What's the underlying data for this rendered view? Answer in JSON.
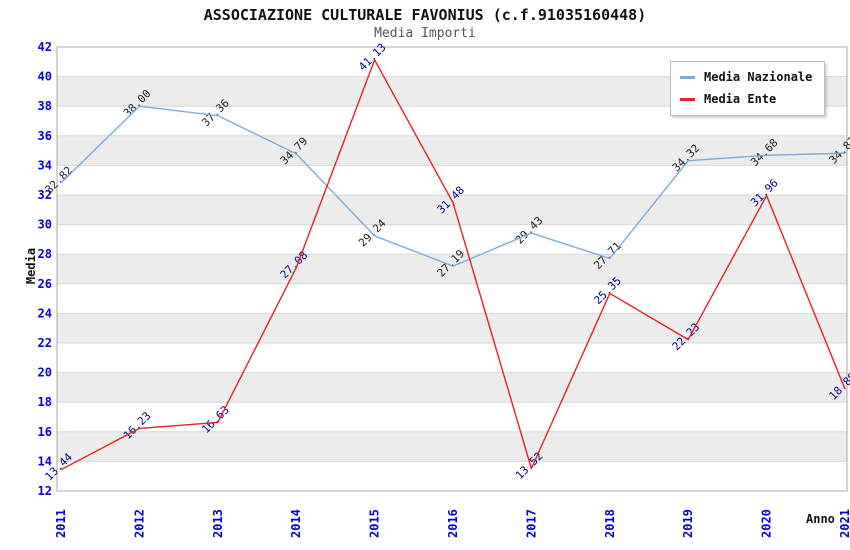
{
  "chart_data": {
    "type": "line",
    "title": "ASSOCIAZIONE CULTURALE FAVONIUS (c.f.91035160448)",
    "subtitle": "Media Importi",
    "xlabel": "Anno",
    "ylabel": "Media",
    "x": [
      "2011",
      "2012",
      "2013",
      "2014",
      "2015",
      "2016",
      "2017",
      "2018",
      "2019",
      "2020",
      "2021"
    ],
    "ylim": [
      12,
      42
    ],
    "ytick_step": 2,
    "grid": true,
    "legend_position": "top-right",
    "series": [
      {
        "name": "Media Nazionale",
        "color": "#7AACDE",
        "label_color": "#222222",
        "values": [
          32.82,
          38.0,
          37.36,
          34.79,
          29.24,
          27.19,
          29.43,
          27.71,
          34.32,
          34.68,
          34.83
        ],
        "point_labels": [
          "32.82",
          "38.00",
          "37.36",
          "34.79",
          "29.24",
          "27.19",
          "29.43",
          "27.71",
          "34.32",
          "34.68",
          "34.83"
        ]
      },
      {
        "name": "Media Ente",
        "color": "#E62222",
        "label_color": "#00008B",
        "values": [
          13.44,
          16.23,
          16.63,
          27.08,
          41.13,
          31.48,
          13.52,
          25.35,
          22.23,
          31.96,
          18.89
        ],
        "point_labels": [
          "13.44",
          "16.23",
          "16.63",
          "27.08",
          "41.13",
          "31.48",
          "13.52",
          "25.35",
          "22.23",
          "31.96",
          "18.89"
        ]
      }
    ],
    "colors": {
      "axis_tick": "#0000DD",
      "band": "#ECECEC",
      "grid_line": "#D8D8D8",
      "plot_border": "#AAAAAA",
      "subtitle": "#555555"
    }
  }
}
